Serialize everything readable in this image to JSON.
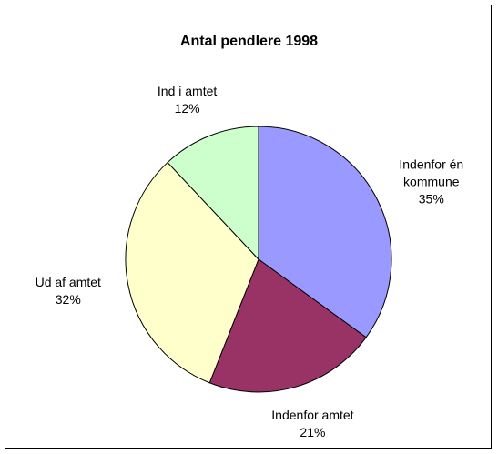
{
  "chart_data": {
    "type": "pie",
    "title": "Antal pendlere 1998",
    "categories": [
      "Indenfor én kommune",
      "Indenfor amtet",
      "Ud af amtet",
      "Ind i amtet"
    ],
    "values": [
      35,
      21,
      32,
      12
    ],
    "value_labels": [
      "35%",
      "21%",
      "32%",
      "12%"
    ],
    "colors": [
      "#9999ff",
      "#993366",
      "#ffffcc",
      "#ccffcc"
    ]
  }
}
